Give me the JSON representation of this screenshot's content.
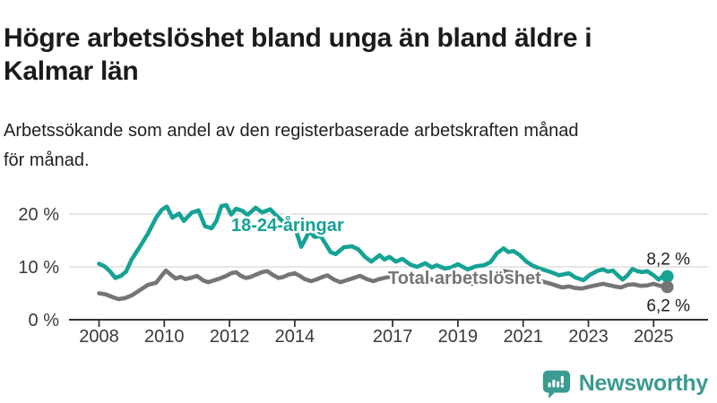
{
  "header": {
    "title": "Högre arbetslöshet bland unga än bland äldre i Kalmar län",
    "title_lines": [
      "Högre arbetslöshet bland unga än bland äldre i",
      "Kalmar län"
    ],
    "subtitle": "Arbetssökande som andel av den registerbaserade arbetskraften månad för månad.",
    "subtitle_lines": [
      "Arbetssökande som andel av den registerbaserade arbetskraften månad",
      "för månad."
    ]
  },
  "chart_data": {
    "type": "line",
    "title": "Högre arbetslöshet bland unga än bland äldre i Kalmar län",
    "subtitle": "Arbetssökande som andel av den registerbaserade arbetskraften månad för månad.",
    "xlabel": "",
    "ylabel": "",
    "grid": true,
    "legend_position": "inline-labels",
    "xlim": [
      2007.3,
      2027
    ],
    "ylim": [
      0,
      27.5
    ],
    "xticks": [
      2008,
      2010,
      2012,
      2014,
      2017,
      2019,
      2021,
      2023,
      2025
    ],
    "yticks": [
      {
        "v": 0,
        "label": "0 %"
      },
      {
        "v": 10,
        "label": "10 %"
      },
      {
        "v": 20,
        "label": "20 %"
      }
    ],
    "series": [
      {
        "name": "18-24-åringar",
        "color": "#16a294",
        "end_label": "8,2 %",
        "last_value": 8.2,
        "points": [
          [
            2008.0,
            10.6
          ],
          [
            2008.17,
            10.1
          ],
          [
            2008.33,
            9.2
          ],
          [
            2008.5,
            7.9
          ],
          [
            2008.67,
            8.3
          ],
          [
            2008.83,
            9.1
          ],
          [
            2009.0,
            11.4
          ],
          [
            2009.25,
            13.8
          ],
          [
            2009.5,
            16.3
          ],
          [
            2009.75,
            19.3
          ],
          [
            2009.92,
            20.8
          ],
          [
            2010.08,
            21.4
          ],
          [
            2010.25,
            19.3
          ],
          [
            2010.45,
            20.1
          ],
          [
            2010.6,
            18.7
          ],
          [
            2010.85,
            20.3
          ],
          [
            2011.05,
            20.7
          ],
          [
            2011.25,
            17.7
          ],
          [
            2011.45,
            17.3
          ],
          [
            2011.6,
            18.7
          ],
          [
            2011.75,
            21.5
          ],
          [
            2011.9,
            21.7
          ],
          [
            2012.05,
            19.9
          ],
          [
            2012.2,
            21.0
          ],
          [
            2012.4,
            20.6
          ],
          [
            2012.55,
            19.8
          ],
          [
            2012.8,
            21.2
          ],
          [
            2013.0,
            20.3
          ],
          [
            2013.25,
            20.9
          ],
          [
            2013.4,
            19.9
          ],
          [
            2013.6,
            18.8
          ],
          [
            2013.8,
            17.6
          ],
          [
            2014.05,
            16.6
          ],
          [
            2014.2,
            13.8
          ],
          [
            2014.45,
            16.8
          ],
          [
            2014.6,
            15.7
          ],
          [
            2014.8,
            15.8
          ],
          [
            2015.1,
            12.8
          ],
          [
            2015.25,
            12.4
          ],
          [
            2015.5,
            13.7
          ],
          [
            2015.75,
            13.9
          ],
          [
            2015.95,
            13.3
          ],
          [
            2016.15,
            11.9
          ],
          [
            2016.35,
            11.0
          ],
          [
            2016.6,
            12.2
          ],
          [
            2016.75,
            11.4
          ],
          [
            2016.9,
            11.9
          ],
          [
            2017.1,
            11.0
          ],
          [
            2017.3,
            11.5
          ],
          [
            2017.55,
            10.4
          ],
          [
            2017.75,
            10.0
          ],
          [
            2018.0,
            10.7
          ],
          [
            2018.2,
            9.9
          ],
          [
            2018.35,
            10.3
          ],
          [
            2018.6,
            9.7
          ],
          [
            2018.8,
            9.9
          ],
          [
            2019.0,
            10.5
          ],
          [
            2019.3,
            9.5
          ],
          [
            2019.55,
            10.1
          ],
          [
            2019.8,
            10.3
          ],
          [
            2020.0,
            10.9
          ],
          [
            2020.2,
            12.6
          ],
          [
            2020.4,
            13.5
          ],
          [
            2020.55,
            12.8
          ],
          [
            2020.7,
            13.0
          ],
          [
            2020.9,
            12.2
          ],
          [
            2021.1,
            11.0
          ],
          [
            2021.3,
            10.2
          ],
          [
            2021.5,
            9.7
          ],
          [
            2021.7,
            9.3
          ],
          [
            2021.9,
            8.9
          ],
          [
            2022.1,
            8.4
          ],
          [
            2022.4,
            8.8
          ],
          [
            2022.6,
            8.0
          ],
          [
            2022.85,
            7.5
          ],
          [
            2023.05,
            8.5
          ],
          [
            2023.3,
            9.3
          ],
          [
            2023.45,
            9.5
          ],
          [
            2023.6,
            9.1
          ],
          [
            2023.75,
            9.3
          ],
          [
            2023.9,
            8.4
          ],
          [
            2024.05,
            7.6
          ],
          [
            2024.2,
            8.4
          ],
          [
            2024.35,
            9.6
          ],
          [
            2024.5,
            9.2
          ],
          [
            2024.65,
            9.0
          ],
          [
            2024.8,
            9.2
          ],
          [
            2025.0,
            8.4
          ],
          [
            2025.15,
            7.6
          ],
          [
            2025.3,
            8.3
          ],
          [
            2025.42,
            8.2
          ]
        ]
      },
      {
        "name": "Total arbetslöshet",
        "color": "#757575",
        "end_label": "6,2 %",
        "last_value": 6.2,
        "points": [
          [
            2008.0,
            5.0
          ],
          [
            2008.2,
            4.8
          ],
          [
            2008.45,
            4.2
          ],
          [
            2008.6,
            3.9
          ],
          [
            2008.8,
            4.1
          ],
          [
            2009.0,
            4.6
          ],
          [
            2009.25,
            5.6
          ],
          [
            2009.5,
            6.6
          ],
          [
            2009.75,
            7.0
          ],
          [
            2009.9,
            8.2
          ],
          [
            2010.05,
            9.3
          ],
          [
            2010.2,
            8.5
          ],
          [
            2010.35,
            7.8
          ],
          [
            2010.5,
            8.1
          ],
          [
            2010.65,
            7.7
          ],
          [
            2010.8,
            7.9
          ],
          [
            2011.0,
            8.3
          ],
          [
            2011.2,
            7.4
          ],
          [
            2011.35,
            7.1
          ],
          [
            2011.5,
            7.4
          ],
          [
            2011.7,
            7.8
          ],
          [
            2011.9,
            8.3
          ],
          [
            2012.05,
            8.8
          ],
          [
            2012.2,
            9.0
          ],
          [
            2012.35,
            8.3
          ],
          [
            2012.5,
            7.9
          ],
          [
            2012.65,
            8.1
          ],
          [
            2012.8,
            8.5
          ],
          [
            2013.0,
            9.0
          ],
          [
            2013.15,
            9.2
          ],
          [
            2013.35,
            8.4
          ],
          [
            2013.5,
            7.9
          ],
          [
            2013.65,
            8.1
          ],
          [
            2013.8,
            8.5
          ],
          [
            2014.0,
            8.8
          ],
          [
            2014.15,
            8.3
          ],
          [
            2014.3,
            7.7
          ],
          [
            2014.5,
            7.3
          ],
          [
            2014.65,
            7.6
          ],
          [
            2014.85,
            8.1
          ],
          [
            2015.0,
            8.4
          ],
          [
            2015.2,
            7.6
          ],
          [
            2015.4,
            7.1
          ],
          [
            2015.6,
            7.5
          ],
          [
            2015.8,
            7.9
          ],
          [
            2016.0,
            8.3
          ],
          [
            2016.2,
            7.7
          ],
          [
            2016.4,
            7.3
          ],
          [
            2016.6,
            7.7
          ],
          [
            2016.8,
            8.0
          ],
          [
            2017.0,
            8.2
          ],
          [
            2017.2,
            7.6
          ],
          [
            2017.4,
            7.2
          ],
          [
            2017.6,
            7.6
          ],
          [
            2017.8,
            7.9
          ],
          [
            2018.0,
            8.1
          ],
          [
            2018.2,
            7.6
          ],
          [
            2018.4,
            7.1
          ],
          [
            2018.6,
            6.9
          ],
          [
            2018.8,
            7.2
          ],
          [
            2019.0,
            7.4
          ],
          [
            2019.2,
            7.1
          ],
          [
            2019.4,
            6.8
          ],
          [
            2019.6,
            6.9
          ],
          [
            2019.8,
            7.2
          ],
          [
            2020.0,
            7.6
          ],
          [
            2020.2,
            8.5
          ],
          [
            2020.4,
            9.2
          ],
          [
            2020.6,
            9.0
          ],
          [
            2020.8,
            8.7
          ],
          [
            2021.0,
            8.4
          ],
          [
            2021.2,
            8.0
          ],
          [
            2021.4,
            7.6
          ],
          [
            2021.6,
            7.2
          ],
          [
            2021.8,
            6.9
          ],
          [
            2022.0,
            6.5
          ],
          [
            2022.2,
            6.1
          ],
          [
            2022.4,
            6.3
          ],
          [
            2022.6,
            6.0
          ],
          [
            2022.8,
            5.9
          ],
          [
            2023.0,
            6.2
          ],
          [
            2023.2,
            6.5
          ],
          [
            2023.45,
            6.8
          ],
          [
            2023.6,
            6.6
          ],
          [
            2023.8,
            6.3
          ],
          [
            2024.0,
            6.1
          ],
          [
            2024.2,
            6.6
          ],
          [
            2024.4,
            6.7
          ],
          [
            2024.6,
            6.4
          ],
          [
            2024.8,
            6.5
          ],
          [
            2025.0,
            6.8
          ],
          [
            2025.15,
            6.5
          ],
          [
            2025.3,
            6.3
          ],
          [
            2025.42,
            6.2
          ]
        ]
      }
    ]
  },
  "colors": {
    "accent_teal": "#16a294",
    "series_gray": "#757575",
    "gridline": "#dedede",
    "axis": "#333333",
    "brand_teal": "#3b9a91"
  },
  "footer": {
    "brand": "Newsworthy",
    "logo_icon": "bar-chart-speech-bubble-icon"
  }
}
